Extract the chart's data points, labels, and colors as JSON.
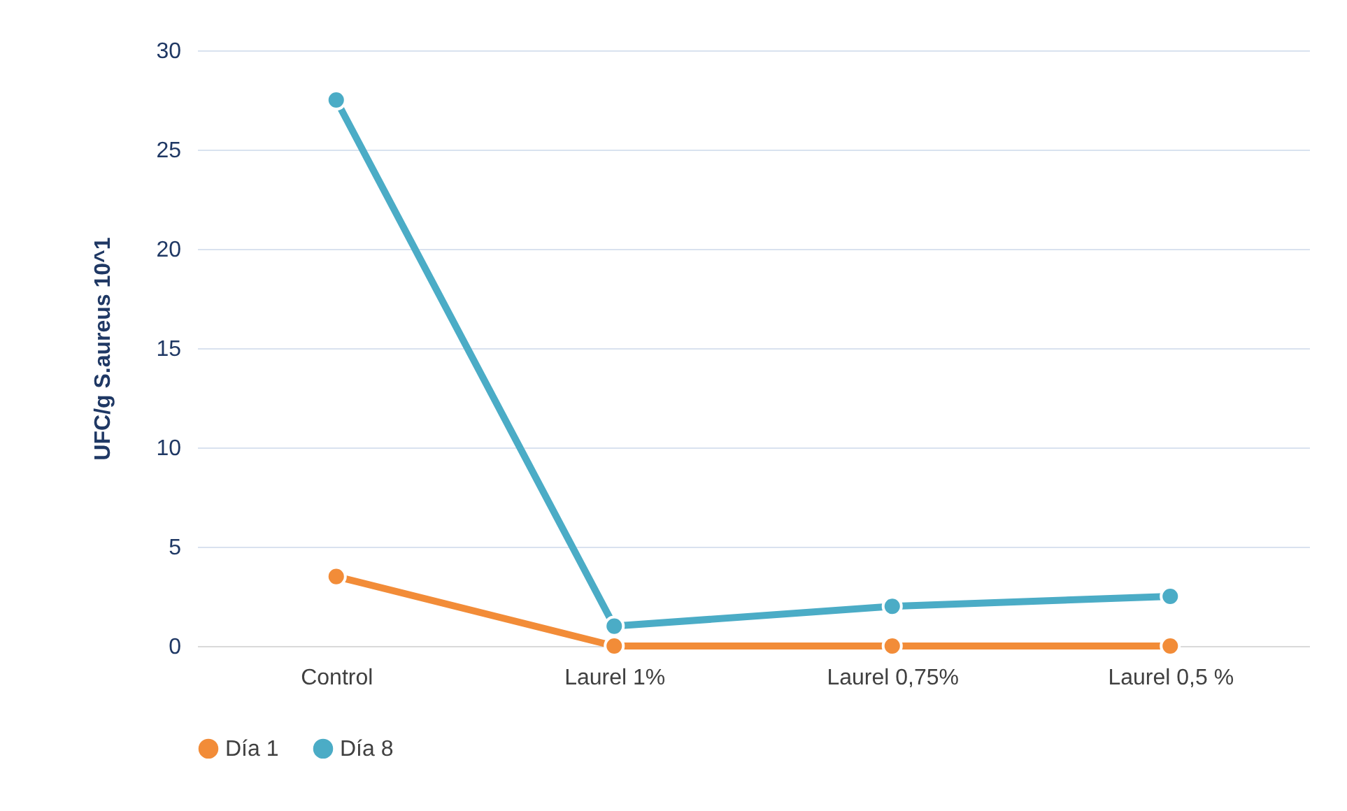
{
  "chart_data": {
    "type": "line",
    "ylabel": "UFC/g S.aureus 10^1",
    "categories": [
      "Control",
      "Laurel 1%",
      "Laurel 0,75%",
      "Laurel 0,5 %"
    ],
    "series": [
      {
        "name": "Día 1",
        "color": "#f28c38",
        "values": [
          3.5,
          0,
          0,
          0
        ]
      },
      {
        "name": "Día 8",
        "color": "#4bacc6",
        "values": [
          27.5,
          1,
          2,
          2.5
        ]
      }
    ],
    "ylim": [
      0,
      30
    ],
    "yticks": [
      0,
      5,
      10,
      15,
      20,
      25,
      30
    ],
    "grid": "y",
    "legend": "bottom",
    "marker": "circle",
    "line_style": "solid"
  }
}
